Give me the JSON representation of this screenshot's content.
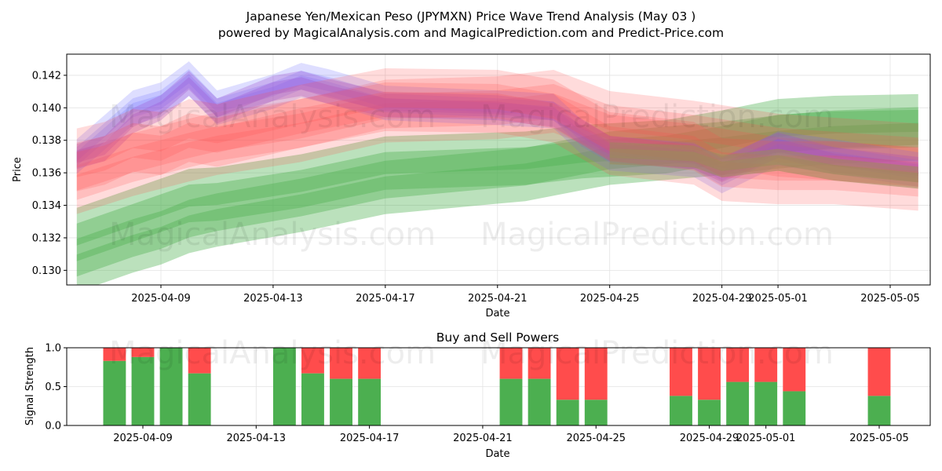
{
  "title_line1": "Japanese Yen/Mexican Peso (JPYMXN) Price Wave Trend Analysis (May 03 )",
  "title_line2": "powered by MagicalAnalysis.com and MagicalPrediction.com and Predict-Price.com",
  "watermarks": [
    "MagicalAnalysis.com",
    "MagicalPrediction.com"
  ],
  "chart_data": [
    {
      "type": "area",
      "title": "",
      "xlabel": "Date",
      "ylabel": "Price",
      "x_ticks": [
        "2025-04-09",
        "2025-04-13",
        "2025-04-17",
        "2025-04-21",
        "2025-04-25",
        "2025-04-29",
        "2025-05-01",
        "2025-05-05"
      ],
      "y_ticks": [
        "0.130",
        "0.132",
        "0.134",
        "0.136",
        "0.138",
        "0.140",
        "0.142"
      ],
      "ylim": [
        0.1291,
        0.1433
      ],
      "xlim": [
        "2025-04-05",
        "2025-05-06"
      ],
      "grid": true,
      "colors": {
        "green": "#4caf50",
        "red": "#ff4c4c",
        "blue": "#6b6bff",
        "purple": "#9b4fd0",
        "olive": "#9c8a5a"
      },
      "series": [
        {
          "color": "green",
          "x": [
            "2025-04-06",
            "2025-04-08",
            "2025-04-09",
            "2025-04-10",
            "2025-04-11",
            "2025-04-14",
            "2025-04-17",
            "2025-04-22",
            "2025-04-25",
            "2025-04-29",
            "2025-05-01",
            "2025-05-03",
            "2025-05-06"
          ],
          "y": [
            0.1303,
            0.1315,
            0.132,
            0.1327,
            0.1331,
            0.134,
            0.1351,
            0.1359,
            0.1369,
            0.1375,
            0.1379,
            0.1382,
            0.1384
          ]
        },
        {
          "color": "green",
          "x": [
            "2025-04-06",
            "2025-04-09",
            "2025-04-10",
            "2025-04-11",
            "2025-04-14",
            "2025-04-17",
            "2025-04-22",
            "2025-04-24",
            "2025-04-27",
            "2025-04-29",
            "2025-05-01",
            "2025-05-03",
            "2025-05-06"
          ],
          "y": [
            0.1322,
            0.134,
            0.1346,
            0.1347,
            0.1355,
            0.1366,
            0.1369,
            0.1373,
            0.1376,
            0.1382,
            0.1389,
            0.1391,
            0.1392
          ]
        },
        {
          "color": "red",
          "x": [
            "2025-04-06",
            "2025-04-08",
            "2025-04-10",
            "2025-04-11",
            "2025-04-14",
            "2025-04-17",
            "2025-04-21",
            "2025-04-23",
            "2025-04-25",
            "2025-04-28",
            "2025-05-01",
            "2025-05-06"
          ],
          "y": [
            0.1354,
            0.1365,
            0.1374,
            0.1378,
            0.1386,
            0.1398,
            0.14,
            0.1404,
            0.1391,
            0.1385,
            0.1377,
            0.1371
          ]
        },
        {
          "color": "blue",
          "x": [
            "2025-04-06",
            "2025-04-07",
            "2025-04-08",
            "2025-04-09",
            "2025-04-10",
            "2025-04-11",
            "2025-04-13",
            "2025-04-14",
            "2025-04-15",
            "2025-04-17",
            "2025-04-21",
            "2025-04-23",
            "2025-04-24",
            "2025-04-25",
            "2025-04-28",
            "2025-04-29",
            "2025-05-01",
            "2025-05-03",
            "2025-05-06"
          ],
          "y": [
            0.137,
            0.1385,
            0.14,
            0.1405,
            0.1418,
            0.14,
            0.141,
            0.1417,
            0.1413,
            0.1403,
            0.14,
            0.1398,
            0.1382,
            0.1372,
            0.1368,
            0.1358,
            0.1375,
            0.137,
            0.1362
          ]
        },
        {
          "color": "purple",
          "x": [
            "2025-04-06",
            "2025-04-07",
            "2025-04-08",
            "2025-04-09",
            "2025-04-10",
            "2025-04-11",
            "2025-04-13",
            "2025-04-14",
            "2025-04-15",
            "2025-04-17",
            "2025-04-21",
            "2025-04-23",
            "2025-04-25",
            "2025-04-28",
            "2025-04-29",
            "2025-05-01",
            "2025-05-03",
            "2025-05-06"
          ],
          "y": [
            0.137,
            0.1375,
            0.1392,
            0.14,
            0.1415,
            0.1398,
            0.1412,
            0.1415,
            0.141,
            0.1402,
            0.14,
            0.1396,
            0.1375,
            0.137,
            0.1362,
            0.1377,
            0.1368,
            0.1362
          ]
        },
        {
          "color": "red",
          "x": [
            "2025-04-06",
            "2025-04-07",
            "2025-04-08",
            "2025-04-09",
            "2025-04-10",
            "2025-04-11",
            "2025-04-14",
            "2025-04-17",
            "2025-04-21",
            "2025-04-23",
            "2025-04-25",
            "2025-04-28",
            "2025-04-29",
            "2025-05-01",
            "2025-05-03",
            "2025-05-06"
          ],
          "y": [
            0.1368,
            0.1372,
            0.138,
            0.1378,
            0.1386,
            0.1383,
            0.1395,
            0.1405,
            0.1404,
            0.1398,
            0.1378,
            0.1372,
            0.1362,
            0.136,
            0.136,
            0.1356
          ]
        },
        {
          "color": "olive",
          "x": [
            "2025-04-25",
            "2025-04-28",
            "2025-04-29",
            "2025-05-01",
            "2025-05-03",
            "2025-05-06"
          ],
          "y": [
            0.1372,
            0.137,
            0.1364,
            0.1368,
            0.1362,
            0.1357
          ]
        }
      ]
    },
    {
      "type": "bar",
      "title": "Buy and Sell Powers",
      "xlabel": "Date",
      "ylabel": "Signal Strength",
      "x_ticks": [
        "2025-04-09",
        "2025-04-13",
        "2025-04-17",
        "2025-04-21",
        "2025-04-25",
        "2025-04-29",
        "2025-05-01",
        "2025-05-05"
      ],
      "y_ticks": [
        "0.0",
        "0.5",
        "1.0"
      ],
      "ylim": [
        0,
        1
      ],
      "grid": true,
      "colors": {
        "buy": "#4caf50",
        "sell": "#ff4c4c"
      },
      "categories": [
        "2025-04-08",
        "2025-04-09",
        "2025-04-10",
        "2025-04-11",
        "2025-04-14",
        "2025-04-15",
        "2025-04-16",
        "2025-04-17",
        "2025-04-22",
        "2025-04-23",
        "2025-04-24",
        "2025-04-25",
        "2025-04-28",
        "2025-04-29",
        "2025-04-30",
        "2025-05-01",
        "2025-05-02",
        "2025-05-05"
      ],
      "buy": [
        0.83,
        0.88,
        1.0,
        0.67,
        1.0,
        0.67,
        0.6,
        0.6,
        0.6,
        0.6,
        0.33,
        0.33,
        0.38,
        0.33,
        0.56,
        0.56,
        0.44,
        0.38
      ]
    }
  ]
}
